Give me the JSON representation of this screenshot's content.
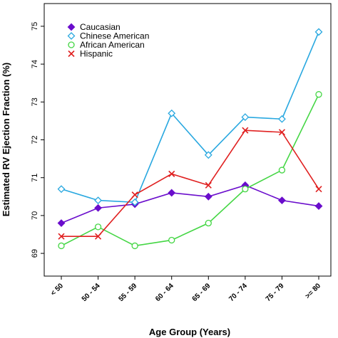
{
  "chart_data": {
    "type": "line",
    "xlabel": "Age Group (Years)",
    "ylabel": "Estimated RV Ejection Fraction (%)",
    "categories": [
      "< 50",
      "50 - 54",
      "55 - 59",
      "60 - 64",
      "65 - 69",
      "70 - 74",
      "75 - 79",
      ">= 80"
    ],
    "ylim": [
      68.4,
      75.6
    ],
    "yticks": [
      69,
      70,
      71,
      72,
      73,
      74,
      75
    ],
    "grid": false,
    "legend": "top-left",
    "series": [
      {
        "name": "Caucasian",
        "color": "#6a0dcc",
        "marker": "diamond-filled",
        "values": [
          69.8,
          70.2,
          70.3,
          70.6,
          70.5,
          70.8,
          70.4,
          70.25
        ]
      },
      {
        "name": "Chinese American",
        "color": "#29a8e0",
        "marker": "diamond-open",
        "values": [
          70.7,
          70.4,
          70.35,
          72.7,
          71.6,
          72.6,
          72.55,
          74.85
        ]
      },
      {
        "name": "African American",
        "color": "#44d644",
        "marker": "circle-open",
        "values": [
          69.2,
          69.7,
          69.2,
          69.35,
          69.8,
          70.7,
          71.2,
          73.2
        ]
      },
      {
        "name": "Hispanic",
        "color": "#e02020",
        "marker": "x",
        "values": [
          69.45,
          69.45,
          70.55,
          71.1,
          70.8,
          72.25,
          72.2,
          70.7
        ]
      }
    ]
  }
}
